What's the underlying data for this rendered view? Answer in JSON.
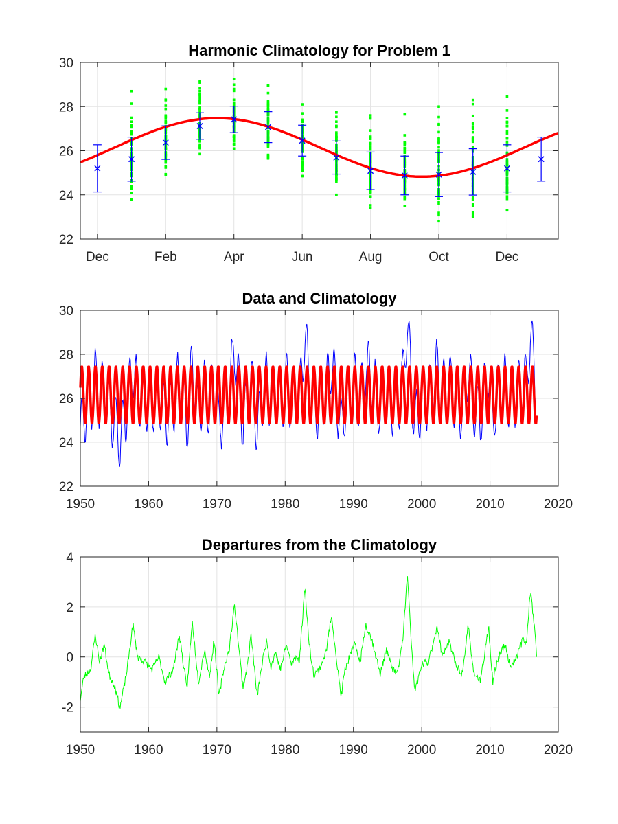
{
  "chart_data": [
    {
      "type": "scatter",
      "title": "Harmonic Climatology for Problem 1",
      "xlabel": "",
      "ylabel": "",
      "xlim": [
        -0.5,
        13.5
      ],
      "ylim": [
        22,
        30
      ],
      "grid": true,
      "x_ticks": [
        0,
        2,
        4,
        6,
        8,
        10,
        12
      ],
      "x_tick_labels": [
        "Dec",
        "Feb",
        "Apr",
        "Jun",
        "Aug",
        "Oct",
        "Dec"
      ],
      "y_ticks": [
        22,
        24,
        26,
        28,
        30
      ],
      "y_tick_labels": [
        "22",
        "24",
        "26",
        "28",
        "30"
      ],
      "colors": {
        "fit": "#ff0000",
        "means": "#0000ff",
        "scatter": "#00ff00",
        "errorbars": "#0000ff"
      },
      "monthly_mean": {
        "x": [
          0,
          1,
          2,
          3,
          4,
          5,
          6,
          7,
          8,
          9,
          10,
          11,
          12,
          13
        ],
        "y": [
          25.2,
          25.62,
          26.37,
          27.12,
          27.42,
          27.07,
          26.46,
          25.69,
          25.09,
          24.88,
          24.92,
          25.04,
          25.2,
          25.62
        ],
        "err": [
          1.07,
          1.0,
          0.76,
          0.6,
          0.6,
          0.7,
          0.7,
          0.75,
          0.85,
          0.88,
          1.0,
          1.05,
          1.07,
          1.0
        ]
      },
      "harmonic_fit": {
        "mean": 26.15,
        "cos_amp": -0.35,
        "sin_amp": 1.28,
        "period_months": 12
      },
      "scatter_spread": {
        "x": [
          1,
          2,
          3,
          4,
          5,
          6,
          7,
          8,
          9,
          10,
          11,
          12
        ],
        "min": [
          23.8,
          24.9,
          25.85,
          26.1,
          25.65,
          24.85,
          24.0,
          23.4,
          23.5,
          22.8,
          23.0,
          23.3
        ],
        "max": [
          28.7,
          28.8,
          29.15,
          29.25,
          28.95,
          28.1,
          27.75,
          27.6,
          27.65,
          28.0,
          28.3,
          28.45
        ]
      }
    },
    {
      "type": "line",
      "title": "Data and Climatology",
      "xlabel": "",
      "ylabel": "",
      "xlim": [
        1950,
        2020
      ],
      "ylim": [
        22,
        30
      ],
      "grid": true,
      "x_ticks": [
        1950,
        1960,
        1970,
        1980,
        1990,
        2000,
        2010,
        2020
      ],
      "x_tick_labels": [
        "1950",
        "1960",
        "1970",
        "1980",
        "1990",
        "2000",
        "2010",
        "2020"
      ],
      "y_ticks": [
        22,
        24,
        26,
        28,
        30
      ],
      "y_tick_labels": [
        "22",
        "24",
        "26",
        "28",
        "30"
      ],
      "x_range": [
        1950.0,
        2016.9
      ],
      "colors": {
        "data": "#0000ff",
        "climatology": "#ff0000"
      },
      "climatology_range": [
        24.88,
        27.42
      ]
    },
    {
      "type": "line",
      "title": "Departures from the Climatology",
      "xlabel": "",
      "ylabel": "",
      "xlim": [
        1950,
        2020
      ],
      "ylim": [
        -3,
        4
      ],
      "grid": true,
      "x_ticks": [
        1950,
        1960,
        1970,
        1980,
        1990,
        2000,
        2010,
        2020
      ],
      "x_tick_labels": [
        "1950",
        "1960",
        "1970",
        "1980",
        "1990",
        "2000",
        "2010",
        "2020"
      ],
      "y_ticks": [
        -2,
        0,
        2,
        4
      ],
      "y_tick_labels": [
        "-2",
        "0",
        "2",
        "4"
      ],
      "colors": {
        "anomaly": "#00ff00"
      },
      "anomaly_key_points": {
        "x": [
          1950.0,
          1950.5,
          1951.5,
          1952.2,
          1952.8,
          1953.5,
          1954.2,
          1955.1,
          1955.8,
          1956.8,
          1957.7,
          1958.4,
          1959.5,
          1960.5,
          1961.5,
          1962.4,
          1963.6,
          1964.5,
          1965.6,
          1966.4,
          1967.3,
          1968.2,
          1968.9,
          1969.6,
          1970.3,
          1971.0,
          1971.8,
          1972.6,
          1973.0,
          1973.8,
          1974.4,
          1975.0,
          1975.9,
          1976.6,
          1977.3,
          1977.9,
          1978.6,
          1979.3,
          1980.2,
          1980.9,
          1981.6,
          1982.1,
          1982.9,
          1983.5,
          1984.2,
          1985.0,
          1986.0,
          1986.8,
          1987.6,
          1988.2,
          1988.7,
          1989.4,
          1990.2,
          1991.0,
          1991.8,
          1992.4,
          1993.0,
          1993.9,
          1994.8,
          1995.6,
          1996.4,
          1997.2,
          1997.9,
          1998.5,
          1999.0,
          2000.0,
          2001.0,
          2002.2,
          2003.0,
          2004.0,
          2005.0,
          2006.0,
          2006.8,
          2007.6,
          2008.6,
          2009.8,
          2010.4,
          2011.2,
          2012.2,
          2013.0,
          2014.0,
          2014.8,
          2015.3,
          2015.9,
          2016.5,
          2016.9
        ],
        "y": [
          -1.7,
          -0.8,
          -0.5,
          0.9,
          -0.2,
          0.5,
          -0.7,
          -1.2,
          -2.05,
          -0.6,
          1.3,
          0.0,
          -0.2,
          -0.5,
          0.0,
          -1.0,
          -0.5,
          0.9,
          -1.3,
          1.4,
          -1.0,
          0.3,
          -0.8,
          0.7,
          -1.6,
          -0.5,
          0.3,
          2.1,
          1.0,
          -1.2,
          -0.5,
          0.9,
          -1.6,
          -0.3,
          0.7,
          -0.4,
          0.2,
          -0.5,
          0.5,
          -0.3,
          0.0,
          -0.1,
          2.85,
          0.5,
          -0.7,
          -0.5,
          0.2,
          1.7,
          -0.3,
          -1.6,
          -0.6,
          0.0,
          0.5,
          -0.2,
          1.3,
          0.9,
          0.4,
          -0.7,
          0.3,
          -0.4,
          -0.7,
          0.6,
          3.25,
          0.5,
          -1.4,
          -0.3,
          -0.2,
          1.2,
          0.1,
          0.6,
          -0.3,
          -0.7,
          1.3,
          -0.6,
          -1.0,
          1.2,
          -1.0,
          0.0,
          0.5,
          -0.4,
          0.1,
          0.7,
          0.5,
          2.65,
          1.3,
          -0.3
        ]
      }
    }
  ]
}
